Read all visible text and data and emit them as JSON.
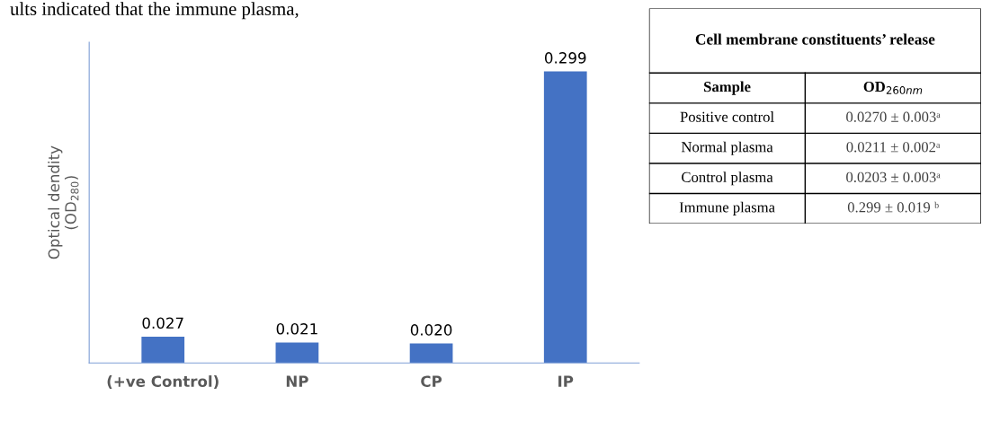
{
  "chart_data": [
    {
      "type": "bar",
      "categories": [
        "(+ve Control)",
        "NP",
        "CP",
        "IP"
      ],
      "values": [
        0.027,
        0.021,
        0.02,
        0.299
      ],
      "color": "#4472c4",
      "value_labels": [
        "0.027",
        "0.021",
        "0.020",
        "0.299"
      ],
      "ylabel": "Optical dendity\n(OD$_{280}$)",
      "tick_labels": "x",
      "grid": false,
      "annotations": [
        "ults indicated that the immune plasma,"
      ]
    },
    {
      "type": "other",
      "title": "Cell membrane constituents’ release",
      "annotations": [
        "Sample",
        "OD$_{260nm}$",
        "Positive control",
        "0.0270 ± 0.003ᵃ",
        "Normal plasma",
        "0.0211 ± 0.002ᵃ",
        "Control plasma",
        "0.0203 ± 0.003ᵃ",
        "Immune plasma",
        "0.299 ± 0.019 ᵇ"
      ]
    }
  ]
}
